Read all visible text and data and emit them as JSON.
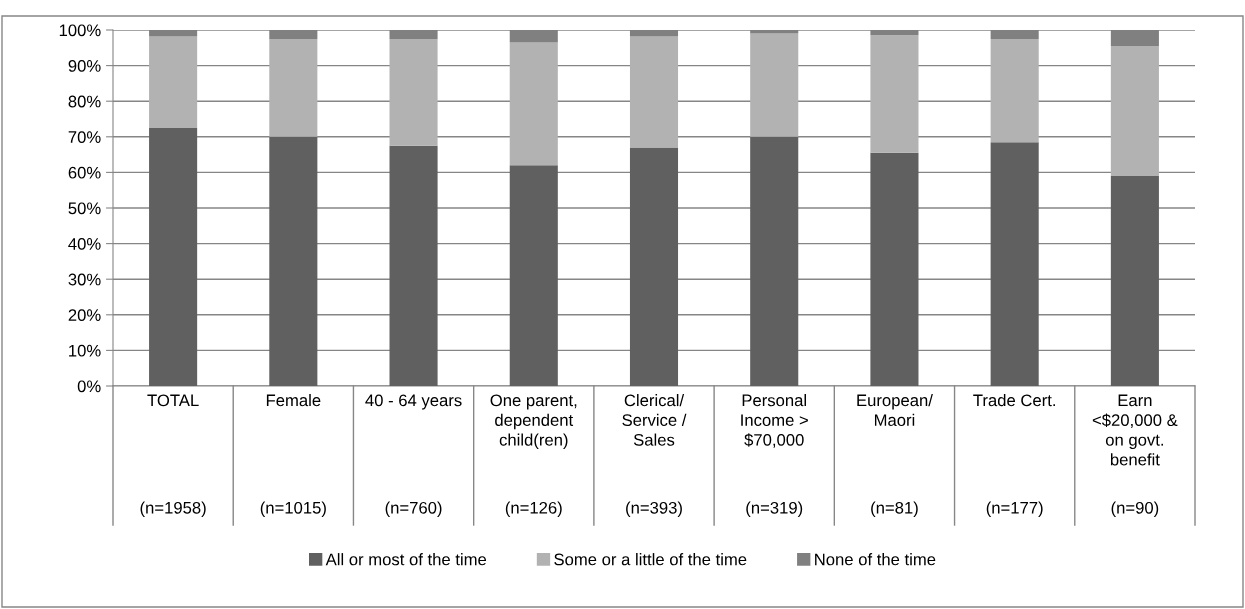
{
  "chart_data": {
    "type": "bar",
    "stacked": true,
    "categories": [
      "TOTAL\n(n=1958)",
      "Female\n(n=1015)",
      "40 - 64 years\n(n=760)",
      "One parent,\ndependent\nchild(ren)\n(n=126)",
      "Clerical/\nService /\nSales\n(n=393)",
      "Personal\nIncome >\n$70,000\n(n=319)",
      "European/\nMaori\n(n=81)",
      "Trade Cert.\n(n=177)",
      "Earn\n<$20,000 &\non govt.\nbenefit\n(n=90)"
    ],
    "series": [
      {
        "name": "All or most of the time",
        "color": "#606060",
        "values": [
          72.5,
          70,
          67.5,
          62,
          67,
          70,
          65.5,
          68.5,
          59
        ]
      },
      {
        "name": "Some or a little of the time",
        "color": "#b2b2b2",
        "values": [
          25.7,
          27.5,
          30,
          34.5,
          31.2,
          29,
          33,
          29,
          36.5
        ]
      },
      {
        "name": "None of the time",
        "color": "#808080",
        "values": [
          1.8,
          2.5,
          2.5,
          3.5,
          1.8,
          1,
          1.5,
          2.5,
          4.5
        ]
      }
    ],
    "ylim": [
      0,
      100
    ],
    "yticks": [
      {
        "value": 0,
        "label": "0%"
      },
      {
        "value": 10,
        "label": "10%"
      },
      {
        "value": 20,
        "label": "20%"
      },
      {
        "value": 30,
        "label": "30%"
      },
      {
        "value": 40,
        "label": "40%"
      },
      {
        "value": 50,
        "label": "50%"
      },
      {
        "value": 60,
        "label": "60%"
      },
      {
        "value": 70,
        "label": "70%"
      },
      {
        "value": 80,
        "label": "80%"
      },
      {
        "value": 90,
        "label": "90%"
      },
      {
        "value": 100,
        "label": "100%"
      }
    ],
    "grid": "y",
    "legend": "bottom"
  }
}
